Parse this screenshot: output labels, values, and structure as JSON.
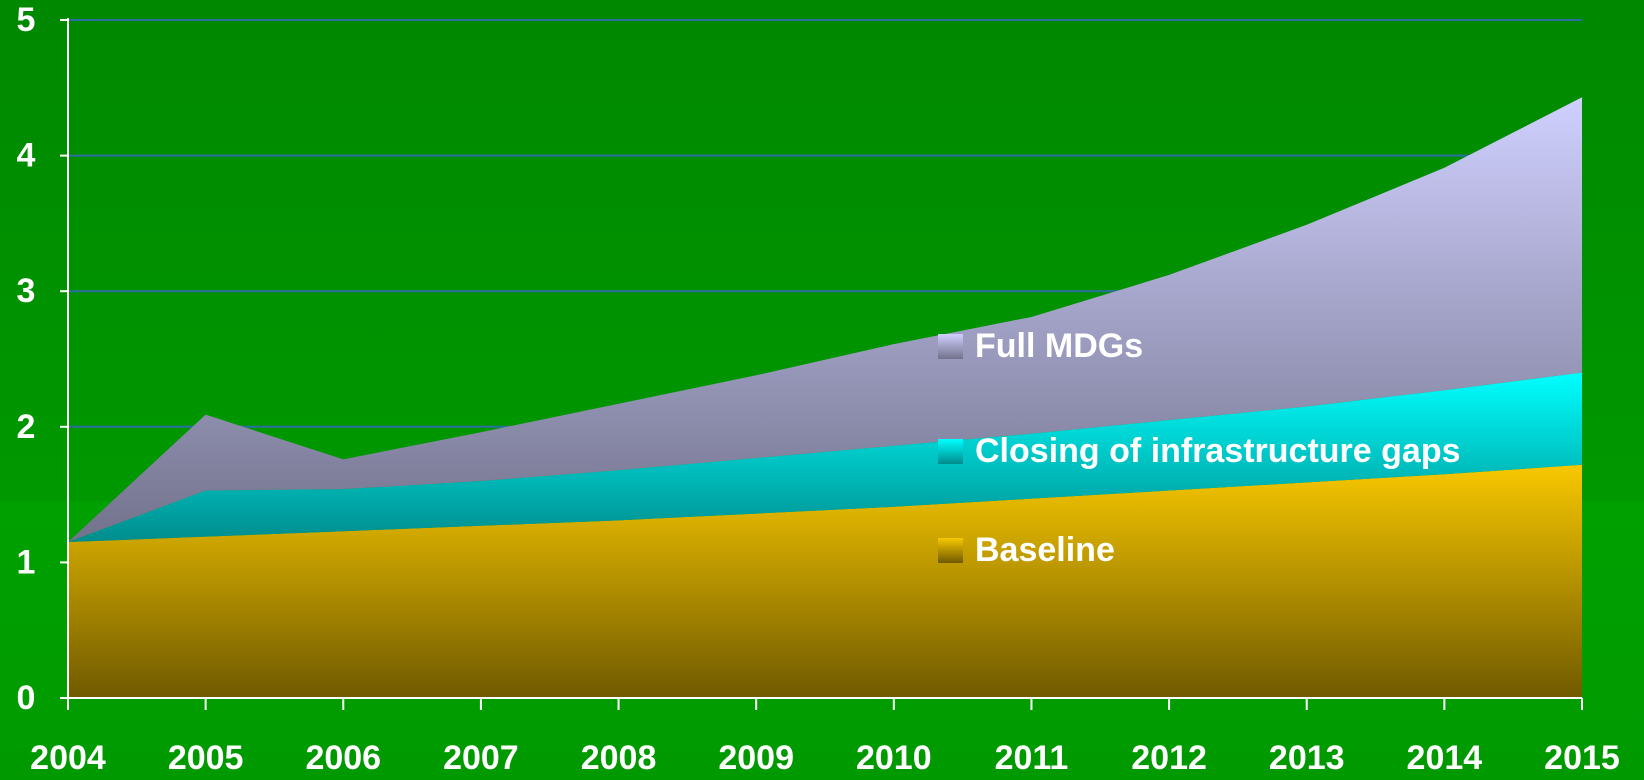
{
  "chart_data": {
    "type": "stacked_area",
    "x": [
      2004,
      2005,
      2006,
      2007,
      2008,
      2009,
      2010,
      2011,
      2012,
      2013,
      2014,
      2015
    ],
    "xlim": [
      2004,
      2015
    ],
    "xticks": [
      2004,
      2005,
      2006,
      2007,
      2008,
      2009,
      2010,
      2011,
      2012,
      2013,
      2014,
      2015
    ],
    "ylim": [
      0,
      5
    ],
    "yticks": [
      0,
      1,
      2,
      3,
      4,
      5
    ],
    "grid": true,
    "series": [
      {
        "name": "Baseline",
        "color": "#f8c800",
        "values": [
          1.15,
          1.19,
          1.23,
          1.27,
          1.31,
          1.36,
          1.41,
          1.47,
          1.53,
          1.59,
          1.65,
          1.72
        ]
      },
      {
        "name": "Closing of infrastructure gaps",
        "color": "#00ffff",
        "values": [
          0,
          0.34,
          0.31,
          0.33,
          0.37,
          0.41,
          0.45,
          0.48,
          0.52,
          0.56,
          0.62,
          0.68
        ]
      },
      {
        "name": "Full MDGs",
        "color": "#d0d0ff",
        "values": [
          0,
          0.56,
          0.22,
          0.36,
          0.49,
          0.61,
          0.75,
          0.86,
          1.07,
          1.34,
          1.64,
          2.03
        ]
      }
    ]
  }
}
